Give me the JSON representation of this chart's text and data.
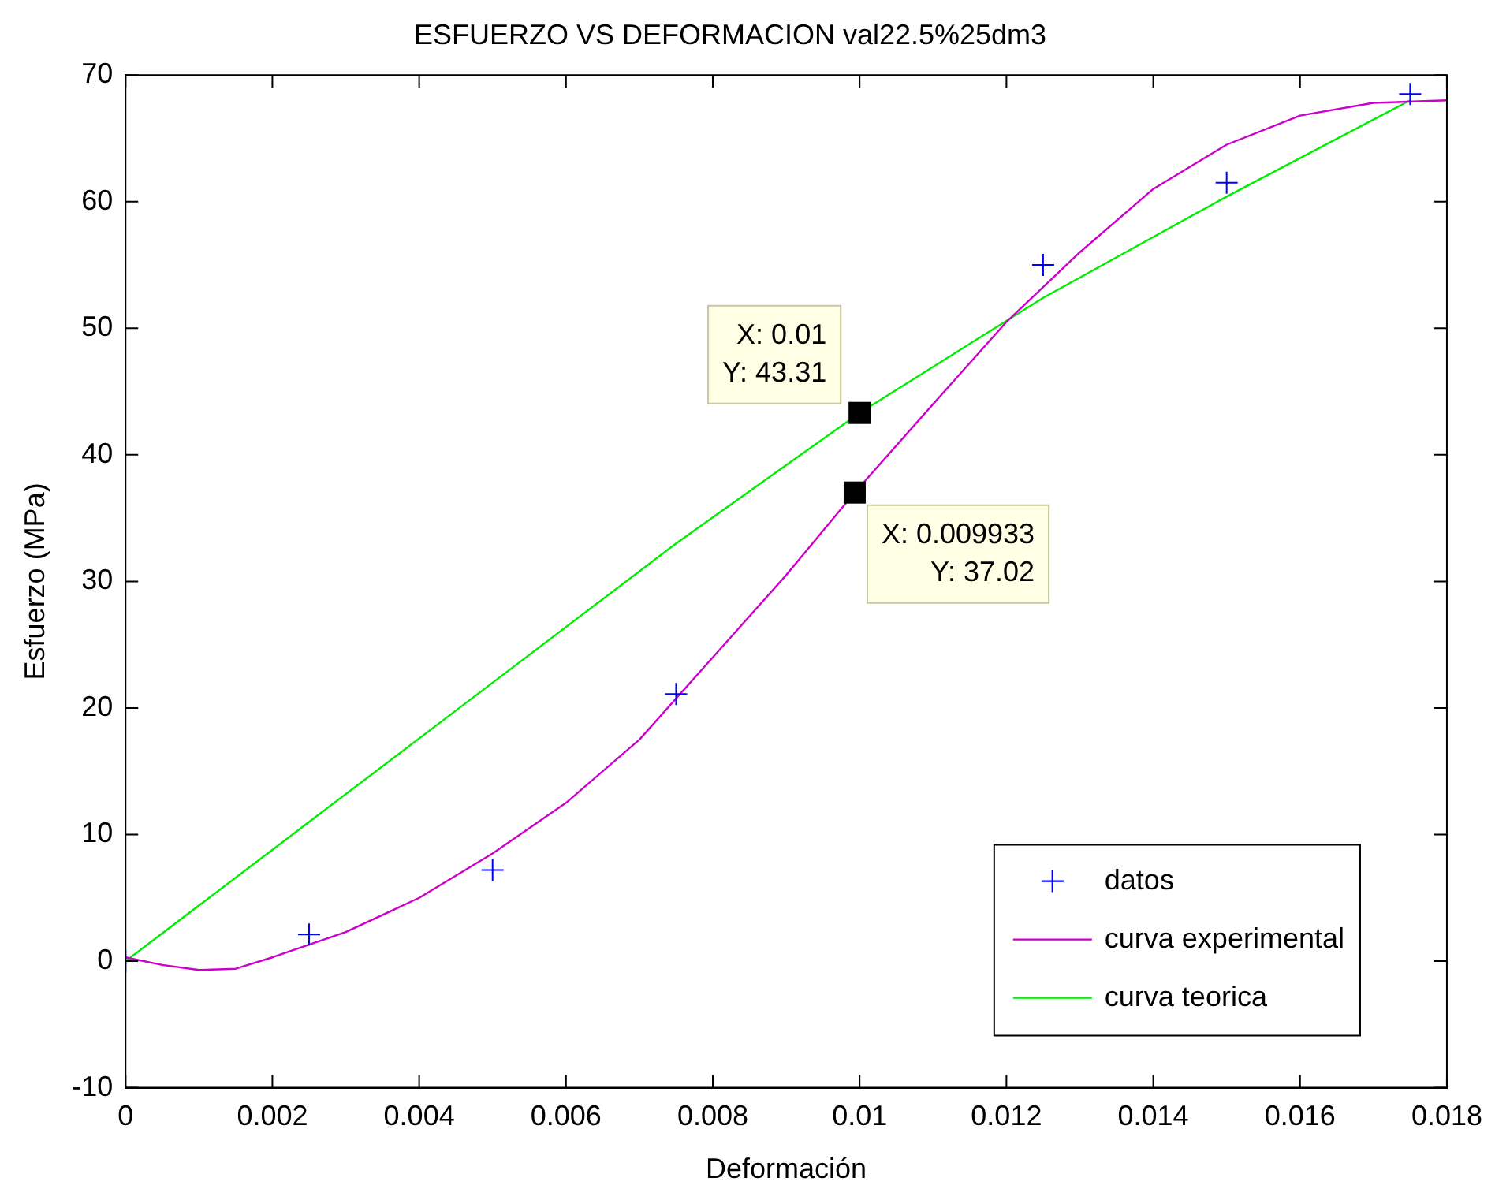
{
  "chart_data": {
    "type": "line",
    "title": "ESFUERZO VS DEFORMACION val22.5%25dm3",
    "xlabel": "Deformación",
    "ylabel": "Esfuerzo (MPa)",
    "xlim": [
      0,
      0.018
    ],
    "xticks": [
      0,
      0.002,
      0.004,
      0.006,
      0.008,
      0.01,
      0.012,
      0.014,
      0.016,
      0.018
    ],
    "ylim": [
      -10,
      70
    ],
    "yticks": [
      -10,
      0,
      10,
      20,
      30,
      40,
      50,
      60,
      70
    ],
    "grid": false,
    "legend": "bottom right",
    "series": [
      {
        "name": "datos",
        "type": "scatter",
        "marker": "cross",
        "color": "#0000ff",
        "x": [
          0,
          0.0025,
          0.005,
          0.0075,
          0.0125,
          0.015,
          0.0175
        ],
        "values": [
          0,
          2.1,
          7.2,
          21.1,
          55,
          61.5,
          68.5
        ]
      },
      {
        "name": "curva experimental",
        "type": "line",
        "marker": "none",
        "color": "#cc00cc",
        "x": [
          0,
          0.0005,
          0.001,
          0.0015,
          0.002,
          0.003,
          0.004,
          0.005,
          0.006,
          0.007,
          0.008,
          0.009,
          0.009933,
          0.011,
          0.012,
          0.013,
          0.014,
          0.015,
          0.016,
          0.017,
          0.018
        ],
        "values": [
          0.3,
          -0.3,
          -0.7,
          -0.6,
          0.3,
          2.3,
          5,
          8.5,
          12.5,
          17.5,
          24,
          30.5,
          37.02,
          44,
          50.5,
          56,
          61,
          64.5,
          66.8,
          67.8,
          68
        ]
      },
      {
        "name": "curva teorica",
        "type": "line",
        "marker": "none",
        "color": "#00ee00",
        "x": [
          0,
          0.0025,
          0.005,
          0.0075,
          0.01,
          0.0125,
          0.015,
          0.0175
        ],
        "values": [
          0,
          11,
          22,
          33,
          43.31,
          52.4,
          60.4,
          68
        ]
      }
    ],
    "annotations": [
      {
        "text": "X: 0.01\nY: 43.31",
        "x": 0.01,
        "y": 43.31
      },
      {
        "text": "X: 0.009933\nY: 37.02",
        "x": 0.009933,
        "y": 37.02
      }
    ]
  }
}
